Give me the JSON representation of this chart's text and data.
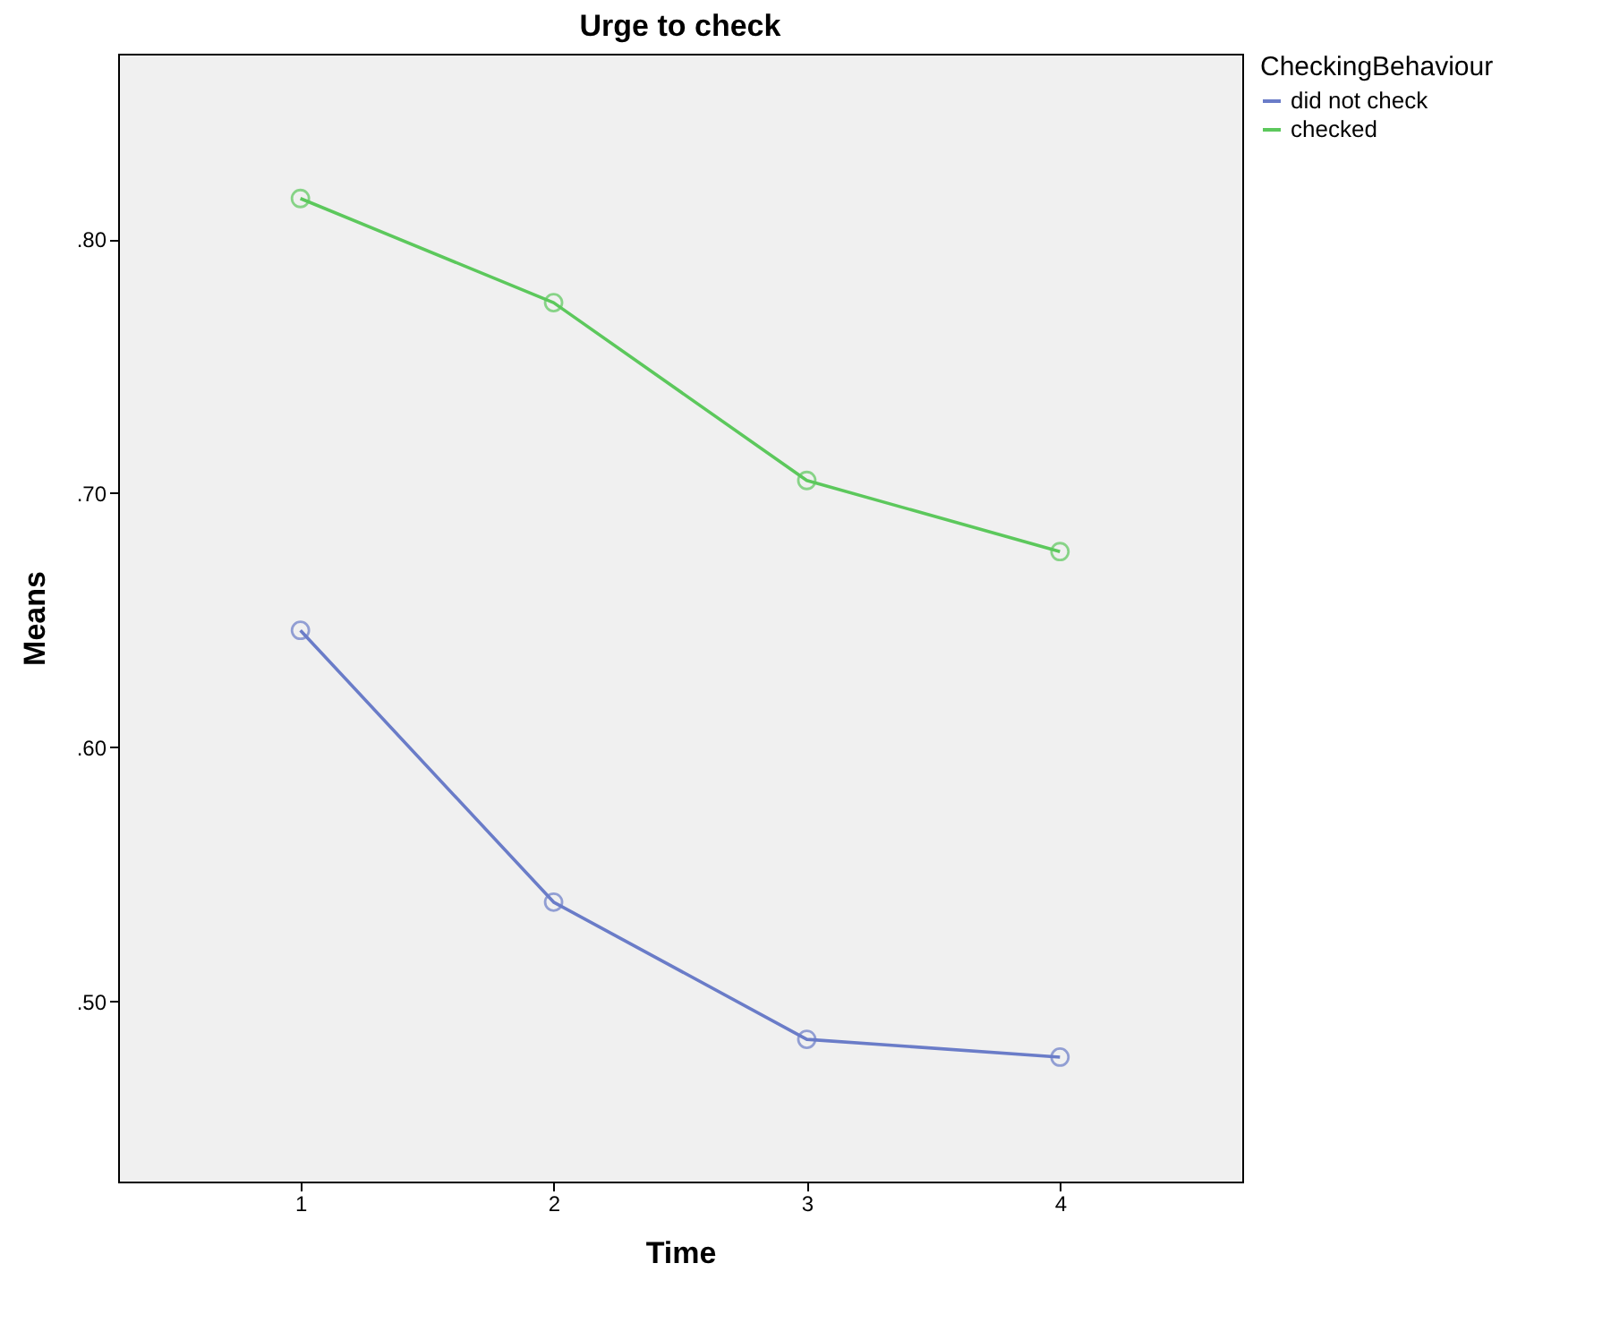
{
  "chart_data": {
    "type": "line",
    "title": "Urge to check",
    "xlabel": "Time",
    "ylabel": "Means",
    "legend_title": "CheckingBehaviour",
    "x": [
      1,
      2,
      3,
      4
    ],
    "series": [
      {
        "name": "did not check",
        "color": "#6a7cc8",
        "values": [
          0.646,
          0.539,
          0.485,
          0.478
        ]
      },
      {
        "name": "checked",
        "color": "#5cc85c",
        "values": [
          0.816,
          0.775,
          0.705,
          0.677
        ]
      }
    ],
    "xlim": [
      0.28,
      4.72
    ],
    "xticks": [
      1,
      2,
      3,
      4
    ],
    "ylim": [
      0.429,
      0.873
    ],
    "yticks": [
      {
        "value": 0.5,
        "label": ".50"
      },
      {
        "value": 0.6,
        "label": ".60"
      },
      {
        "value": 0.7,
        "label": ".70"
      },
      {
        "value": 0.8,
        "label": ".80"
      }
    ],
    "grid": false,
    "legend": "top right",
    "marker": "circle",
    "line_style": "solid"
  }
}
